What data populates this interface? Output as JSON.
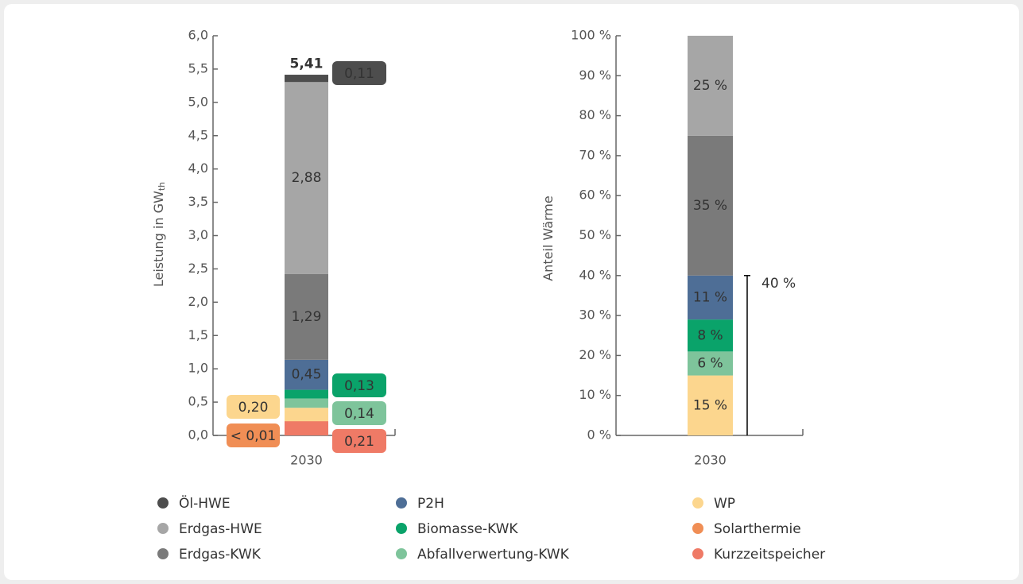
{
  "chart_data": [
    {
      "type": "stacked-bar",
      "categories": [
        "2030"
      ],
      "ylabel": "Leistung in GW",
      "ylabel_sub": "th",
      "ylim": [
        0,
        6
      ],
      "yticks": [
        {
          "value": 0,
          "label": "0,0"
        },
        {
          "value": 0.5,
          "label": "0,5"
        },
        {
          "value": 1,
          "label": "1,0"
        },
        {
          "value": 1.5,
          "label": "1,5"
        },
        {
          "value": 2,
          "label": "2,0"
        },
        {
          "value": 2.5,
          "label": "2,5"
        },
        {
          "value": 3,
          "label": "3,0"
        },
        {
          "value": 3.5,
          "label": "3,5"
        },
        {
          "value": 4,
          "label": "4,0"
        },
        {
          "value": 4.5,
          "label": "4,5"
        },
        {
          "value": 5,
          "label": "5,0"
        },
        {
          "value": 5.5,
          "label": "5,5"
        },
        {
          "value": 6,
          "label": "6,0"
        }
      ],
      "total": 5.41,
      "total_label": "5,41",
      "series": [
        {
          "name": "Öl-HWE",
          "color": "#4d4d4d",
          "label_color": "#ffffff",
          "values": [
            0.11
          ],
          "value_labels": [
            "0,11"
          ]
        },
        {
          "name": "Erdgas-HWE",
          "color": "#a6a6a6",
          "label_color": "#000000",
          "values": [
            2.88
          ],
          "value_labels": [
            "2,88"
          ]
        },
        {
          "name": "Erdgas-KWK",
          "color": "#7a7a7a",
          "label_color": "#ffffff",
          "values": [
            1.29
          ],
          "value_labels": [
            "1,29"
          ]
        },
        {
          "name": "P2H",
          "color": "#4e6e96",
          "label_color": "#ffffff",
          "values": [
            0.45
          ],
          "value_labels": [
            "0,45"
          ]
        },
        {
          "name": "Biomasse-KWK",
          "color": "#0aa36a",
          "label_color": "#ffffff",
          "values": [
            0.13
          ],
          "value_labels": [
            "0,13"
          ]
        },
        {
          "name": "Abfallverwertung-KWK",
          "color": "#7ec49b",
          "label_color": "#000000",
          "values": [
            0.14
          ],
          "value_labels": [
            "0,14"
          ]
        },
        {
          "name": "WP",
          "color": "#fcd68e",
          "label_color": "#000000",
          "values": [
            0.2
          ],
          "value_labels": [
            "0,20"
          ]
        },
        {
          "name": "Solarthermie",
          "color": "#f08e55",
          "label_color": "#000000",
          "values": [
            0.005
          ],
          "value_labels": [
            "< 0,01"
          ]
        },
        {
          "name": "Kurzzeitspeicher",
          "color": "#ef7a66",
          "label_color": "#ffffff",
          "values": [
            0.21
          ],
          "value_labels": [
            "0,21"
          ]
        }
      ]
    },
    {
      "type": "stacked-bar",
      "categories": [
        "2030"
      ],
      "ylabel": "Anteil Wärme",
      "ylim": [
        0,
        100
      ],
      "yticks": [
        {
          "value": 0,
          "label": "0 %"
        },
        {
          "value": 10,
          "label": "10 %"
        },
        {
          "value": 20,
          "label": "20 %"
        },
        {
          "value": 30,
          "label": "30 %"
        },
        {
          "value": 40,
          "label": "40 %"
        },
        {
          "value": 50,
          "label": "50 %"
        },
        {
          "value": 60,
          "label": "60 %"
        },
        {
          "value": 70,
          "label": "70 %"
        },
        {
          "value": 80,
          "label": "80 %"
        },
        {
          "value": 90,
          "label": "90 %"
        },
        {
          "value": 100,
          "label": "100 %"
        }
      ],
      "bracket": {
        "from": 0,
        "to": 40,
        "label": "40 %"
      },
      "series": [
        {
          "color": "#a6a6a6",
          "label_color": "#000000",
          "values": [
            25
          ],
          "value_labels": [
            "25 %"
          ]
        },
        {
          "color": "#7a7a7a",
          "label_color": "#ffffff",
          "values": [
            35
          ],
          "value_labels": [
            "35 %"
          ]
        },
        {
          "color": "#4e6e96",
          "label_color": "#ffffff",
          "values": [
            11
          ],
          "value_labels": [
            "11 %"
          ]
        },
        {
          "color": "#0aa36a",
          "label_color": "#ffffff",
          "values": [
            8
          ],
          "value_labels": [
            "8 %"
          ]
        },
        {
          "color": "#7ec49b",
          "label_color": "#000000",
          "values": [
            6
          ],
          "value_labels": [
            "6 %"
          ]
        },
        {
          "color": "#fcd68e",
          "label_color": "#000000",
          "values": [
            15
          ],
          "value_labels": [
            "15 %"
          ]
        }
      ]
    }
  ]
}
